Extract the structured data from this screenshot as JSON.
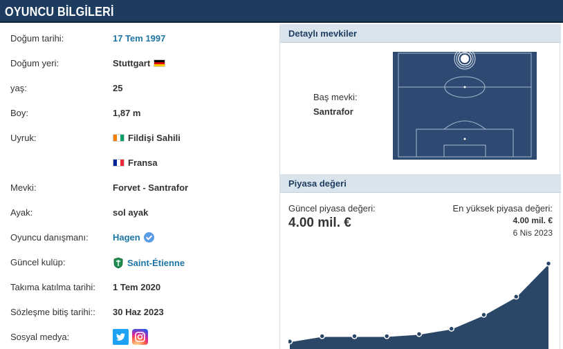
{
  "header": {
    "title": "OYUNCU BİLGİLERİ"
  },
  "info": {
    "rows": [
      {
        "label": "Doğum tarihi:",
        "value": "17 Tem 1997"
      },
      {
        "label": "Doğum yeri:",
        "value": "Stuttgart"
      },
      {
        "label": "yaş:",
        "value": "25"
      },
      {
        "label": "Boy:",
        "value": "1,87 m"
      },
      {
        "label": "Uyruk:",
        "value": "Fildişi Sahili"
      },
      {
        "label": "",
        "value": "Fransa"
      },
      {
        "label": "Mevki:",
        "value": "Forvet - Santrafor"
      },
      {
        "label": "Ayak:",
        "value": "sol ayak"
      },
      {
        "label": "Oyuncu danışmanı:",
        "value": "Hagen"
      },
      {
        "label": "Güncel kulüp:",
        "value": "Saint-Étienne"
      },
      {
        "label": "Takıma katılma tarihi:",
        "value": "1 Tem 2020"
      },
      {
        "label": "Sözleşme bitiş tarihi::",
        "value": "30 Haz 2023"
      },
      {
        "label": "Sosyal medya:",
        "value": ""
      }
    ]
  },
  "positions": {
    "title": "Detaylı mevkiler",
    "main_label": "Baş mevki:",
    "main_value": "Santrafor"
  },
  "market_value": {
    "title": "Piyasa değeri",
    "current_label": "Güncel piyasa değeri:",
    "current_value": "4.00 mil. €",
    "highest_label": "En yüksek piyasa değeri:",
    "highest_value": "4.00 mil. €",
    "highest_date": "6 Nis 2023"
  },
  "chart_data": {
    "type": "area",
    "x": [
      1,
      2,
      3,
      4,
      5,
      6,
      7,
      8,
      9
    ],
    "values": [
      0.35,
      0.6,
      0.6,
      0.6,
      0.7,
      0.95,
      1.6,
      2.45,
      4.0
    ],
    "ylim": [
      0,
      4.4
    ],
    "colors": {
      "fill": "#2b4768",
      "line": "#ffffff",
      "point": "#2b4768"
    }
  },
  "colors": {
    "header": "#1d3c5f",
    "section": "#d9e4ec",
    "link": "#1d75a3",
    "pitch": "#2e4a72"
  }
}
